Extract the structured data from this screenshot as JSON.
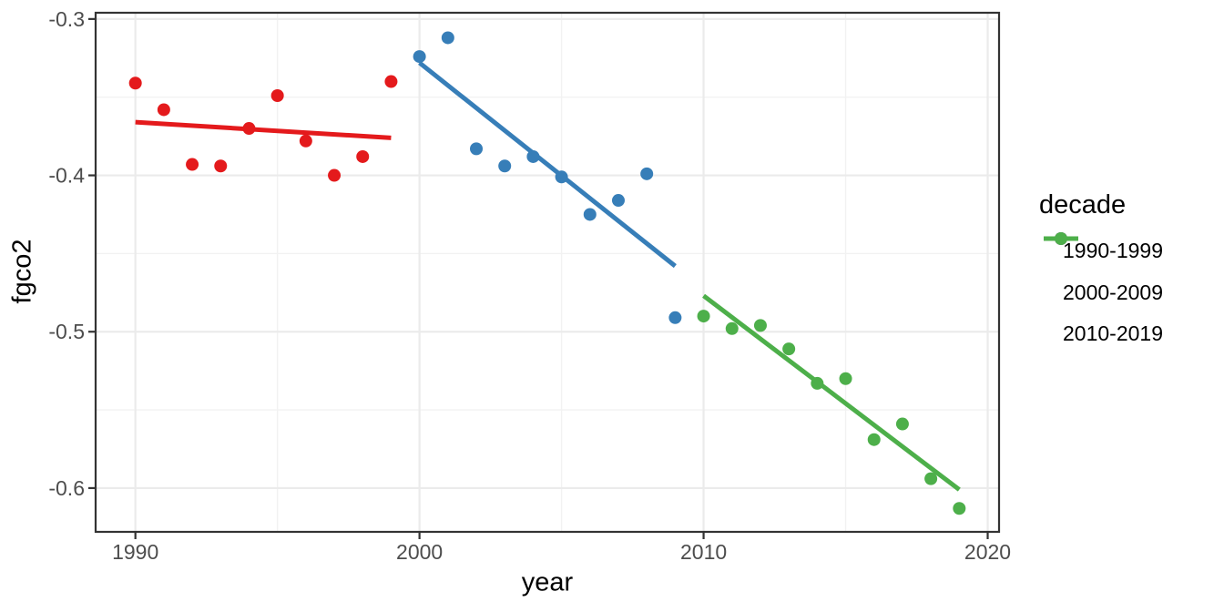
{
  "chart_data": {
    "type": "scatter",
    "title": "",
    "xlabel": "year",
    "ylabel": "fgco2",
    "legend_title": "decade",
    "legend_position": "right",
    "grid": true,
    "xlim": [
      1988.6,
      2020.4
    ],
    "ylim": [
      -0.628,
      -0.296
    ],
    "x_major_ticks": [
      1990,
      2000,
      2010,
      2020
    ],
    "x_tick_labels": [
      "1990",
      "2000",
      "2010",
      "2020"
    ],
    "x_minor_gridlines": [
      1995,
      2005,
      2015
    ],
    "y_major_ticks": [
      -0.3,
      -0.4,
      -0.5,
      -0.6
    ],
    "y_tick_labels": [
      "-0.3",
      "-0.4",
      "-0.5",
      "-0.6"
    ],
    "y_minor_gridlines": [
      -0.35,
      -0.45,
      -0.55
    ],
    "series": [
      {
        "name": "1990-1999",
        "color": "#E41A1C",
        "x": [
          1990,
          1991,
          1992,
          1993,
          1994,
          1995,
          1996,
          1997,
          1998,
          1999
        ],
        "y": [
          -0.341,
          -0.358,
          -0.393,
          -0.394,
          -0.37,
          -0.349,
          -0.378,
          -0.4,
          -0.388,
          -0.34
        ],
        "trend": {
          "x1": 1990,
          "y1": -0.366,
          "x2": 1999,
          "y2": -0.376
        }
      },
      {
        "name": "2000-2009",
        "color": "#377EB8",
        "x": [
          2000,
          2001,
          2002,
          2003,
          2004,
          2005,
          2006,
          2007,
          2008,
          2009
        ],
        "y": [
          -0.324,
          -0.312,
          -0.383,
          -0.394,
          -0.388,
          -0.401,
          -0.425,
          -0.416,
          -0.399,
          -0.491
        ],
        "trend": {
          "x1": 2000,
          "y1": -0.328,
          "x2": 2009,
          "y2": -0.458
        }
      },
      {
        "name": "2010-2019",
        "color": "#4DAF4A",
        "x": [
          2010,
          2011,
          2012,
          2013,
          2014,
          2015,
          2016,
          2017,
          2018,
          2019
        ],
        "y": [
          -0.49,
          -0.498,
          -0.496,
          -0.511,
          -0.533,
          -0.53,
          -0.569,
          -0.559,
          -0.594,
          -0.613
        ],
        "trend": {
          "x1": 2010,
          "y1": -0.477,
          "x2": 2019,
          "y2": -0.601
        }
      }
    ],
    "colors": {
      "background": "#FFFFFF",
      "grid_major": "#EBEBEB",
      "grid_minor": "#F2F2F2",
      "panel_border": "#333333",
      "axis_tick": "#333333",
      "tick_label": "#4D4D4D",
      "axis_title": "#000000",
      "legend_text": "#000000"
    }
  }
}
